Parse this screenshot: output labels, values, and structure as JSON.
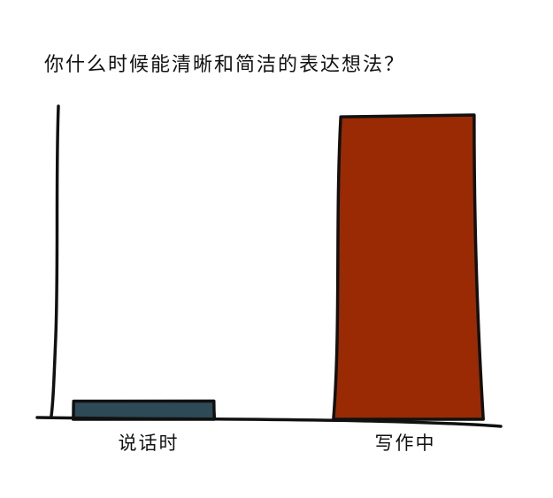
{
  "chart_data": {
    "type": "bar",
    "title": "你什么时候能清晰和简洁的表达想法？",
    "xlabel": "",
    "ylabel": "",
    "categories": [
      "说话时",
      "写作中"
    ],
    "values": [
      6,
      100
    ],
    "ylim": [
      0,
      100
    ],
    "grid": false,
    "legend": "none",
    "colors": [
      "#2f4a57",
      "#992a04"
    ]
  }
}
